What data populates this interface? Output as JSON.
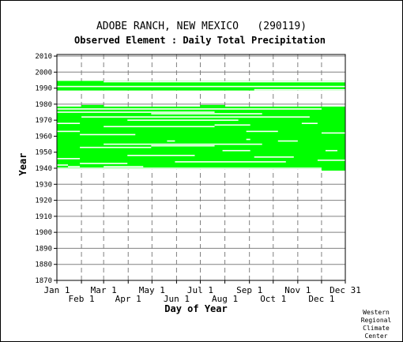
{
  "chart_data": {
    "type": "heatmap",
    "title": "ADOBE RANCH, NEW MEXICO   (290119)",
    "subtitle": "Observed Element : Daily Total Precipitation",
    "xlabel": "Day of Year",
    "ylabel": "Year",
    "credit": [
      "Western",
      "Regional",
      "Climate",
      "Center"
    ],
    "colors": {
      "data": "#00ff00",
      "grid": "#808080",
      "axis": "#000000",
      "background": "#ffffff"
    },
    "grid": true,
    "xlim": [
      1,
      365
    ],
    "ylim": [
      1870,
      2011
    ],
    "y_ticks": [
      1870,
      1880,
      1890,
      1900,
      1910,
      1920,
      1930,
      1940,
      1950,
      1960,
      1970,
      1980,
      1990,
      2000,
      2010
    ],
    "x_ticks_upper": [
      {
        "label": "Jan 1",
        "day": 1
      },
      {
        "label": "Mar 1",
        "day": 60
      },
      {
        "label": "May 1",
        "day": 121
      },
      {
        "label": "Jul 1",
        "day": 182
      },
      {
        "label": "Sep 1",
        "day": 244
      },
      {
        "label": "Nov 1",
        "day": 305
      },
      {
        "label": "Dec 31",
        "day": 365
      }
    ],
    "x_ticks_lower": [
      {
        "label": "Feb 1",
        "day": 32
      },
      {
        "label": "Apr 1",
        "day": 91
      },
      {
        "label": "Jun 1",
        "day": 152
      },
      {
        "label": "Aug 1",
        "day": 213
      },
      {
        "label": "Oct 1",
        "day": 274
      },
      {
        "label": "Dec 1",
        "day": 335
      }
    ],
    "data_blocks": [
      {
        "year_start": 1939.5,
        "year_end": 1978.5,
        "day_start": 1,
        "day_end": 365,
        "label": "observed"
      },
      {
        "year_start": 1988.5,
        "year_end": 1994.5,
        "day_start": 1,
        "day_end": 365,
        "label": "observed"
      }
    ],
    "partial_years": [
      {
        "year": 1979,
        "day_start": 32,
        "day_end": 60
      },
      {
        "year": 1979,
        "day_start": 182,
        "day_end": 213
      },
      {
        "year": 1977,
        "day_start": 335,
        "day_end": 365
      },
      {
        "year": 1994,
        "day_start": 1,
        "day_end": 60
      },
      {
        "year": 1939,
        "day_start": 335,
        "day_end": 365
      }
    ],
    "missing_segments": [
      {
        "year": 1977,
        "day_start": 1,
        "day_end": 335
      },
      {
        "year": 1975,
        "day_start": 1,
        "day_end": 200
      },
      {
        "year": 1974,
        "day_start": 120,
        "day_end": 260
      },
      {
        "year": 1972,
        "day_start": 32,
        "day_end": 320
      },
      {
        "year": 1970,
        "day_start": 90,
        "day_end": 230
      },
      {
        "year": 1968,
        "day_start": 1,
        "day_end": 30
      },
      {
        "year": 1968,
        "day_start": 310,
        "day_end": 330
      },
      {
        "year": 1967,
        "day_start": 200,
        "day_end": 245
      },
      {
        "year": 1966,
        "day_start": 60,
        "day_end": 200
      },
      {
        "year": 1963,
        "day_start": 1,
        "day_end": 30
      },
      {
        "year": 1963,
        "day_start": 240,
        "day_end": 280
      },
      {
        "year": 1962,
        "day_start": 335,
        "day_end": 365
      },
      {
        "year": 1961,
        "day_start": 30,
        "day_end": 100
      },
      {
        "year": 1958,
        "day_start": 240,
        "day_end": 245
      },
      {
        "year": 1957,
        "day_start": 280,
        "day_end": 305
      },
      {
        "year": 1957,
        "day_start": 140,
        "day_end": 150
      },
      {
        "year": 1955,
        "day_start": 60,
        "day_end": 260
      },
      {
        "year": 1954,
        "day_start": 120,
        "day_end": 200
      },
      {
        "year": 1953,
        "day_start": 30,
        "day_end": 120
      },
      {
        "year": 1951,
        "day_start": 210,
        "day_end": 245
      },
      {
        "year": 1951,
        "day_start": 340,
        "day_end": 355
      },
      {
        "year": 1948,
        "day_start": 90,
        "day_end": 175
      },
      {
        "year": 1947,
        "day_start": 250,
        "day_end": 300
      },
      {
        "year": 1946,
        "day_start": 1,
        "day_end": 30
      },
      {
        "year": 1945,
        "day_start": 330,
        "day_end": 365
      },
      {
        "year": 1944,
        "day_start": 150,
        "day_end": 290
      },
      {
        "year": 1943,
        "day_start": 30,
        "day_end": 90
      },
      {
        "year": 1942,
        "day_start": 1,
        "day_end": 15
      },
      {
        "year": 1941,
        "day_start": 60,
        "day_end": 110
      },
      {
        "year": 1941,
        "day_start": 15,
        "day_end": 30
      },
      {
        "year": 1940,
        "day_start": 1,
        "day_end": 335
      },
      {
        "year": 1939,
        "day_start": 1,
        "day_end": 335
      },
      {
        "year": 1991,
        "day_start": 1,
        "day_end": 365
      },
      {
        "year": 1989,
        "day_start": 250,
        "day_end": 365
      },
      {
        "year": 1994,
        "day_start": 60,
        "day_end": 130
      },
      {
        "year": 1994,
        "day_start": 130,
        "day_end": 365
      },
      {
        "year": 1988,
        "day_start": 1,
        "day_end": 365
      }
    ]
  }
}
